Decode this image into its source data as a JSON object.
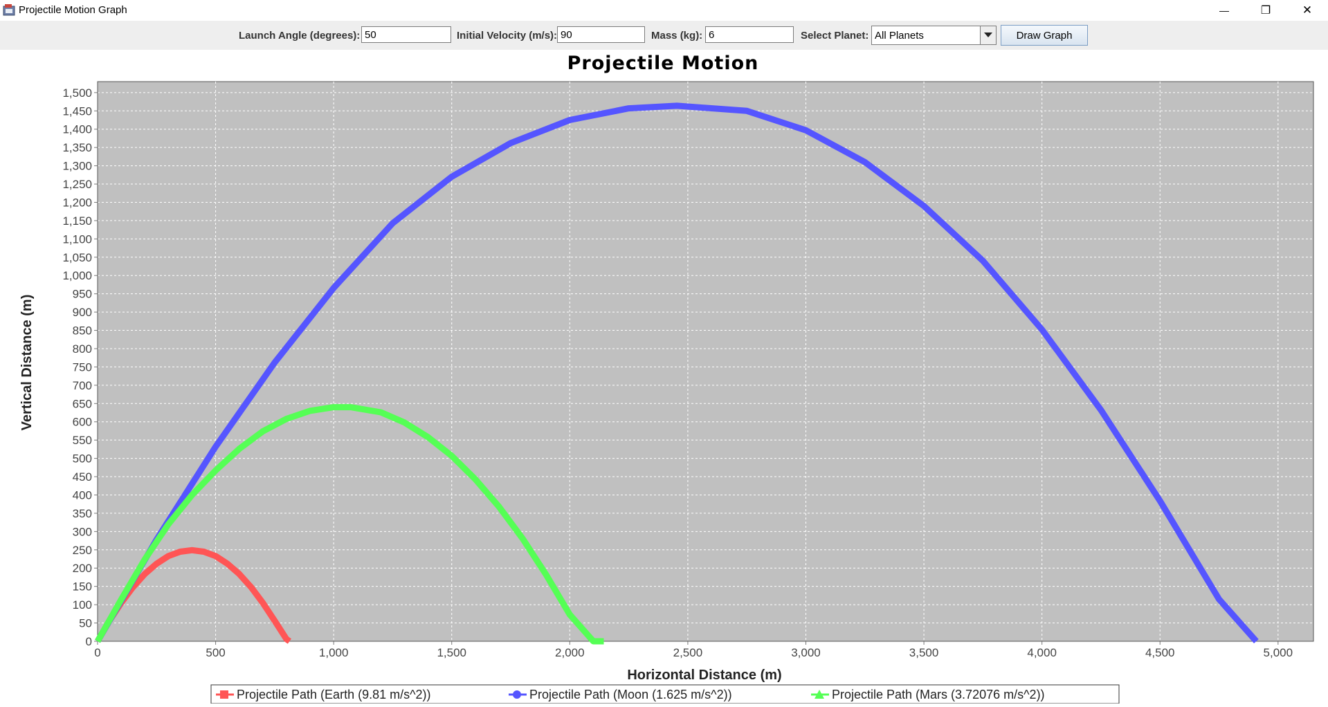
{
  "window": {
    "title": "Projectile Motion Graph",
    "minimize_glyph": "—",
    "restore_glyph": "❐",
    "close_glyph": "✕"
  },
  "toolbar": {
    "angle_label": "Launch Angle (degrees):",
    "angle_value": "50",
    "velocity_label": "Initial Velocity (m/s):",
    "velocity_value": "90",
    "mass_label": "Mass (kg):",
    "mass_value": "6",
    "planet_label": "Select Planet:",
    "planet_value": "All Planets",
    "draw_button_label": "Draw Graph"
  },
  "colors": {
    "plot_background": "#c0c0c0",
    "earth": "#ff5555",
    "moon": "#5555ff",
    "mars": "#55ff55"
  },
  "chart_data": {
    "type": "line",
    "title": "Projectile Motion",
    "xlabel": "Horizontal Distance (m)",
    "ylabel": "Vertical Distance (m)",
    "xlim": [
      0,
      5150
    ],
    "ylim": [
      0,
      1530
    ],
    "x_ticks": [
      0,
      500,
      1000,
      1500,
      2000,
      2500,
      3000,
      3500,
      4000,
      4500,
      5000
    ],
    "x_tick_labels": [
      "0",
      "500",
      "1,000",
      "1,500",
      "2,000",
      "2,500",
      "3,000",
      "3,500",
      "4,000",
      "4,500",
      "5,000"
    ],
    "y_ticks": [
      0,
      50,
      100,
      150,
      200,
      250,
      300,
      350,
      400,
      450,
      500,
      550,
      600,
      650,
      700,
      750,
      800,
      850,
      900,
      950,
      1000,
      1050,
      1100,
      1150,
      1200,
      1250,
      1300,
      1350,
      1400,
      1450,
      1500
    ],
    "y_tick_labels": [
      "0",
      "50",
      "100",
      "150",
      "200",
      "250",
      "300",
      "350",
      "400",
      "450",
      "500",
      "550",
      "600",
      "650",
      "700",
      "750",
      "800",
      "850",
      "900",
      "950",
      "1,000",
      "1,050",
      "1,100",
      "1,150",
      "1,200",
      "1,250",
      "1,300",
      "1,350",
      "1,400",
      "1,450",
      "1,500"
    ],
    "grid": true,
    "legend_position": "bottom",
    "series": [
      {
        "name": "Projectile Path (Earth (9.81 m/s^2))",
        "color": "#ff5555",
        "marker": "square",
        "x": [
          0,
          50,
          100,
          150,
          200,
          250,
          300,
          350,
          400,
          450,
          500,
          550,
          600,
          650,
          700,
          750,
          800,
          813
        ],
        "y": [
          0,
          56,
          105,
          148,
          184,
          212,
          233,
          245,
          249,
          245,
          233,
          212,
          184,
          148,
          105,
          56,
          6,
          0
        ]
      },
      {
        "name": "Projectile Path (Moon (1.625 m/s^2))",
        "color": "#5555ff",
        "marker": "circle",
        "x": [
          0,
          250,
          500,
          750,
          1000,
          1250,
          1500,
          1750,
          2000,
          2250,
          2454,
          2750,
          3000,
          3250,
          3500,
          3750,
          4000,
          4250,
          4500,
          4750,
          4908
        ],
        "y": [
          0,
          278,
          532,
          762,
          966,
          1143,
          1270,
          1362,
          1425,
          1457,
          1464,
          1450,
          1397,
          1310,
          1190,
          1040,
          852,
          632,
          384,
          115,
          0
        ]
      },
      {
        "name": "Projectile Path (Mars (3.72076 m/s^2))",
        "color": "#55ff55",
        "marker": "triangle",
        "x": [
          0,
          100,
          200,
          300,
          400,
          500,
          600,
          700,
          800,
          900,
          1000,
          1072,
          1200,
          1300,
          1400,
          1500,
          1600,
          1700,
          1800,
          1900,
          2000,
          2100,
          2144
        ],
        "y": [
          0,
          114,
          224,
          320,
          400,
          467,
          526,
          574,
          608,
          630,
          640,
          640,
          626,
          598,
          558,
          507,
          443,
          368,
          281,
          182,
          73,
          0,
          0
        ]
      }
    ]
  }
}
